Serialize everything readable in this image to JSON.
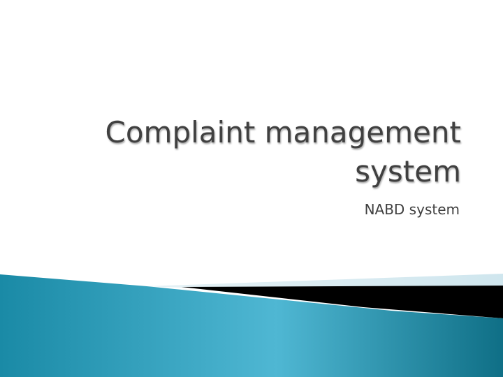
{
  "slide": {
    "title": "Complaint management system",
    "subtitle": "NABD system"
  },
  "colors": {
    "background": "#ffffff",
    "text": "#404040",
    "teal_light": "#4fb7d3",
    "teal_dark": "#0f6f86",
    "pale_band": "#d6eaf1",
    "black_band": "#000000"
  }
}
